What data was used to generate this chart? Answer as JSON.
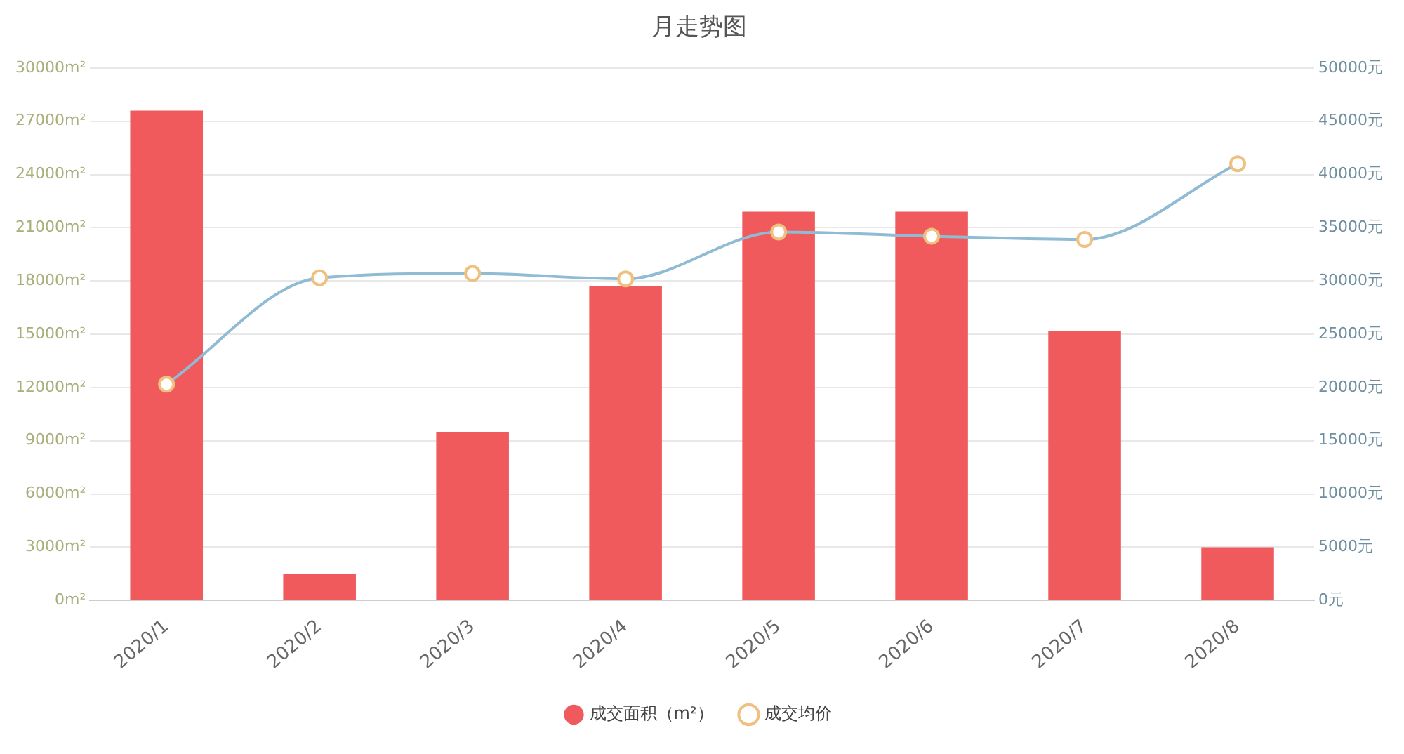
{
  "chart_data": {
    "type": "bar",
    "title": "月走势图",
    "categories": [
      "2020/1",
      "2020/2",
      "2020/3",
      "2020/4",
      "2020/5",
      "2020/6",
      "2020/7",
      "2020/8"
    ],
    "series": [
      {
        "name": "成交面积（m²）",
        "color": "#f05a5c",
        "values": [
          27600,
          1500,
          9500,
          17700,
          21900,
          21900,
          15200,
          3000
        ]
      },
      {
        "name": "成交均价",
        "type": "line",
        "axis": "y2",
        "color": "#8fbcd4",
        "marker": "circle",
        "values": [
          20300,
          30300,
          30700,
          30200,
          34600,
          34200,
          33900,
          41000
        ]
      }
    ],
    "ylim": [
      0,
      30000
    ],
    "yticks": [
      {
        "value": 0,
        "label": "0m²"
      },
      {
        "value": 3000,
        "label": "3000m²"
      },
      {
        "value": 6000,
        "label": "6000m²"
      },
      {
        "value": 9000,
        "label": "9000m²"
      },
      {
        "value": 12000,
        "label": "12000m²"
      },
      {
        "value": 15000,
        "label": "15000m²"
      },
      {
        "value": 18000,
        "label": "18000m²"
      },
      {
        "value": 21000,
        "label": "21000m²"
      },
      {
        "value": 24000,
        "label": "24000m²"
      },
      {
        "value": 27000,
        "label": "27000m²"
      },
      {
        "value": 30000,
        "label": "30000m²"
      }
    ],
    "y2lim": [
      0,
      50000
    ],
    "y2ticks": [
      {
        "value": 0,
        "label": "0元"
      },
      {
        "value": 5000,
        "label": "5000元"
      },
      {
        "value": 10000,
        "label": "10000元"
      },
      {
        "value": 15000,
        "label": "15000元"
      },
      {
        "value": 20000,
        "label": "20000元"
      },
      {
        "value": 25000,
        "label": "25000元"
      },
      {
        "value": 30000,
        "label": "30000元"
      },
      {
        "value": 35000,
        "label": "35000元"
      },
      {
        "value": 40000,
        "label": "40000元"
      },
      {
        "value": 45000,
        "label": "45000元"
      },
      {
        "value": 50000,
        "label": "50000元"
      }
    ],
    "grid": "y",
    "legend": "bottom"
  }
}
